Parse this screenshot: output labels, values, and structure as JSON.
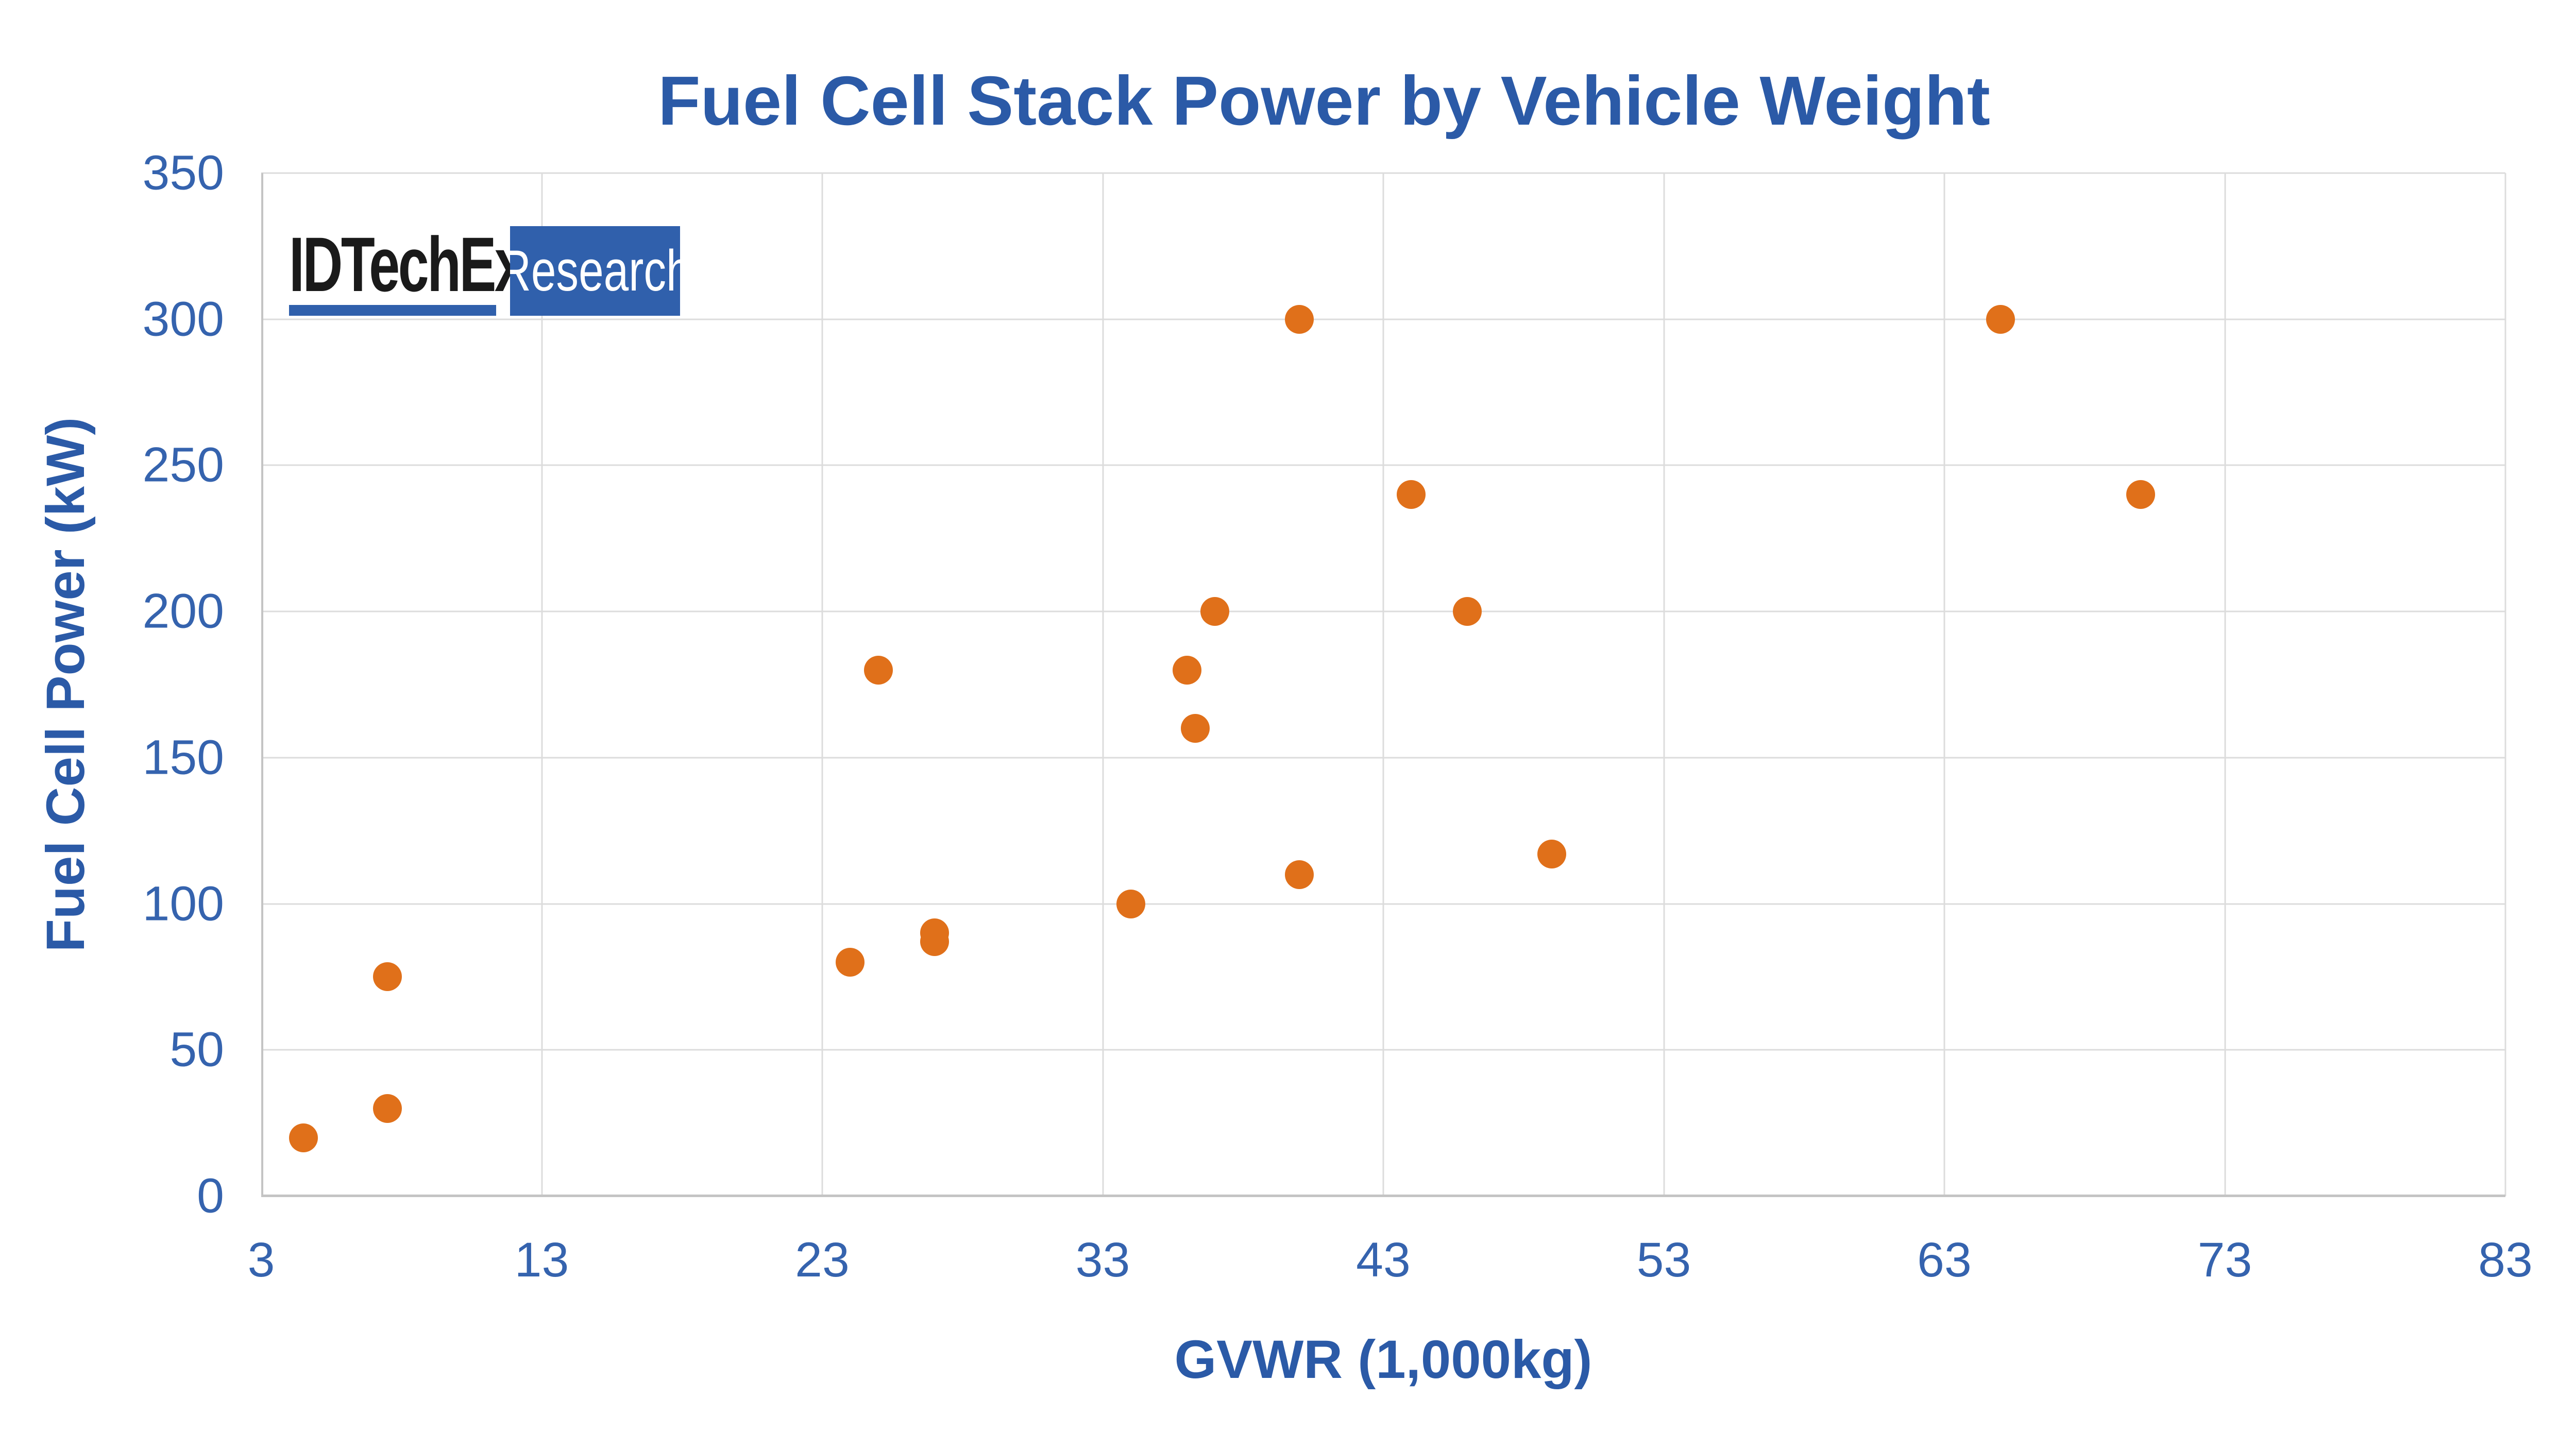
{
  "logo": {
    "brand": "IDTechEx",
    "research": "Research"
  },
  "colors": {
    "title_blue": "#2B5AA7",
    "tick_blue": "#3563AE",
    "marker_orange": "#E0701A",
    "grid_gray": "#DCDCDC",
    "axis_gray": "#C4C4C4",
    "logo_blue": "#3060AC",
    "logo_black": "#1A1A1A"
  },
  "chart_data": {
    "type": "scatter",
    "title": "Fuel Cell Stack Power by Vehicle Weight",
    "xlabel": "GVWR (1,000kg)",
    "ylabel": "Fuel Cell Power (kW)",
    "xlim": [
      3,
      83
    ],
    "ylim": [
      0,
      350
    ],
    "x_ticks": [
      3,
      13,
      23,
      33,
      43,
      53,
      63,
      73,
      83
    ],
    "y_ticks": [
      0,
      50,
      100,
      150,
      200,
      250,
      300,
      350
    ],
    "grid": true,
    "legend": false,
    "points": [
      [
        4.5,
        20
      ],
      [
        7.5,
        30
      ],
      [
        7.5,
        75
      ],
      [
        24,
        80
      ],
      [
        25,
        180
      ],
      [
        27,
        87
      ],
      [
        27,
        90
      ],
      [
        34,
        100
      ],
      [
        36,
        180
      ],
      [
        36.3,
        160
      ],
      [
        37,
        200
      ],
      [
        40,
        110
      ],
      [
        40,
        300
      ],
      [
        44,
        240
      ],
      [
        46,
        200
      ],
      [
        49,
        117
      ],
      [
        65,
        300
      ],
      [
        70,
        240
      ]
    ]
  }
}
